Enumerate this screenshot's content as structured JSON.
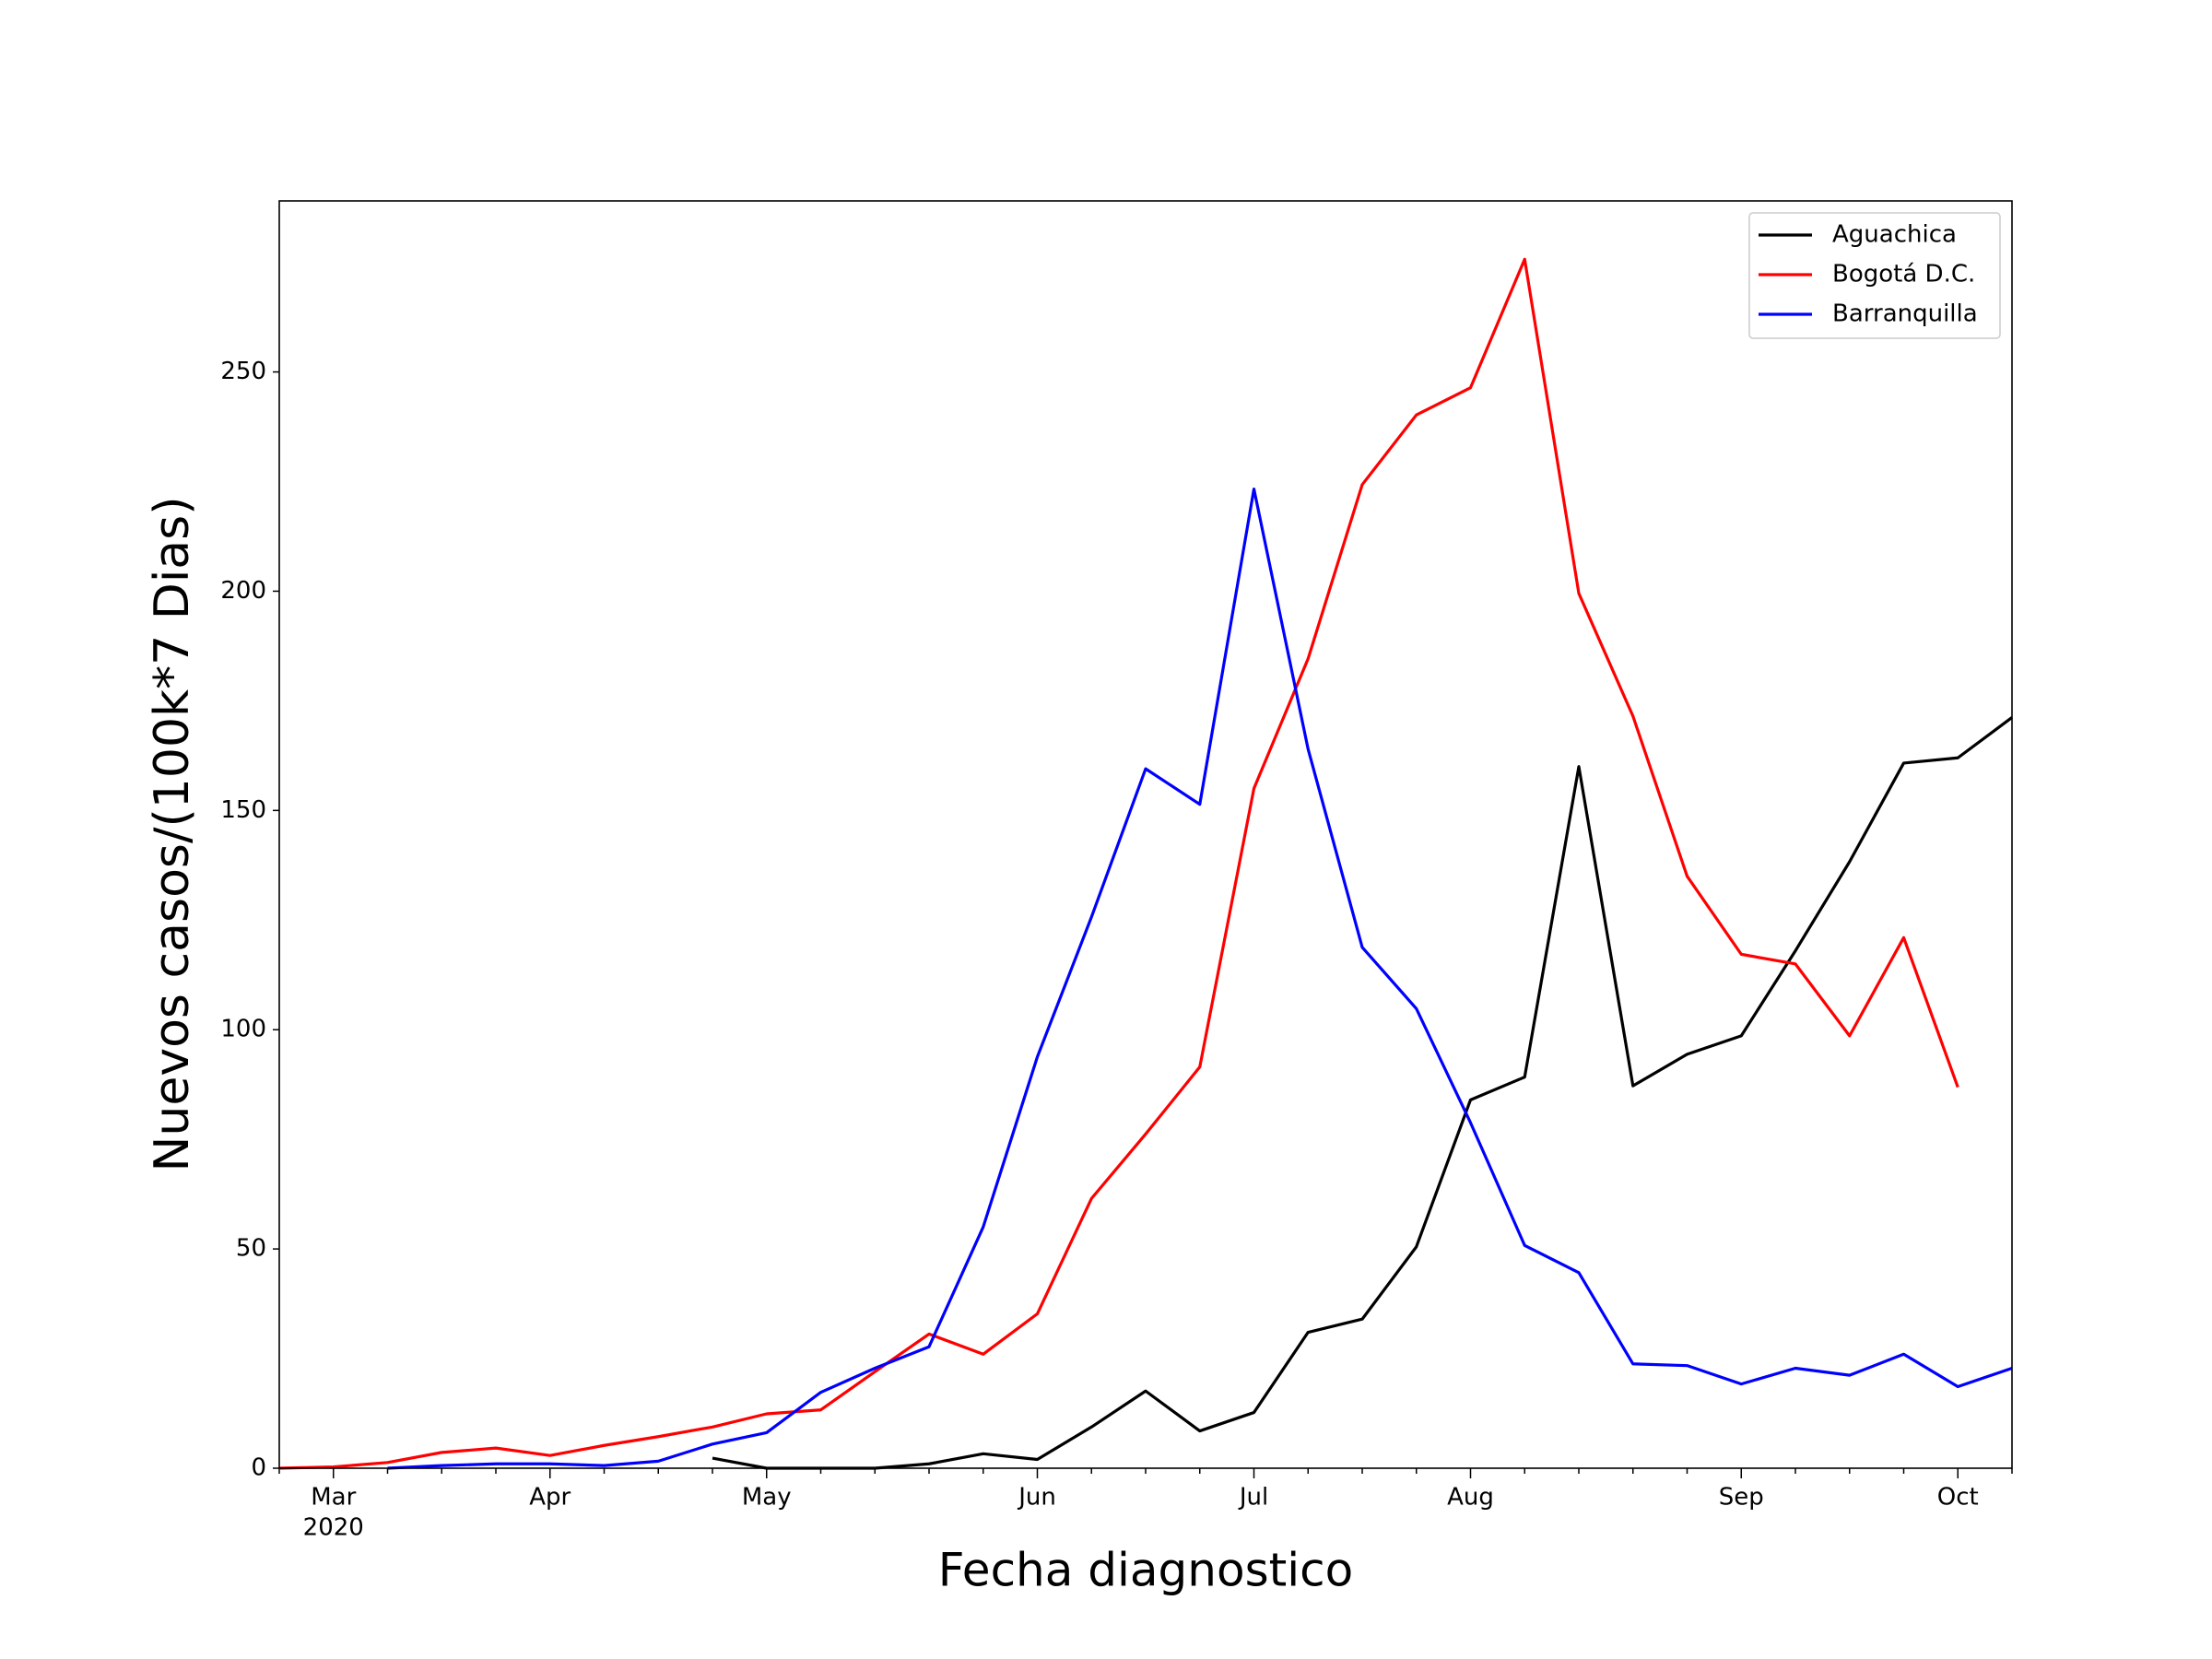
{
  "chart_data": {
    "type": "line",
    "xlabel": "Fecha diagnostico",
    "ylabel": "Nuevos casos/(100k*7 Dias)",
    "categories": [
      null,
      "Mar",
      null,
      null,
      null,
      "Apr",
      null,
      null,
      null,
      "May",
      null,
      null,
      null,
      null,
      "Jun",
      null,
      null,
      null,
      "Jul",
      null,
      null,
      null,
      "Aug",
      null,
      null,
      null,
      null,
      "Sep",
      null,
      null,
      null,
      "Oct",
      null
    ],
    "year_label": "2020",
    "ylim": [
      0,
      289
    ],
    "yticks": [
      0,
      50,
      100,
      150,
      200,
      250
    ],
    "legend": "upper right",
    "series": [
      {
        "name": "Aguachica",
        "color": "#000000",
        "values": [
          null,
          null,
          null,
          null,
          null,
          null,
          null,
          null,
          2.3,
          0,
          0,
          0,
          1,
          3.3,
          2,
          9.4,
          17.6,
          8.5,
          12.7,
          31,
          34,
          50.5,
          84,
          89.2,
          160,
          87.2,
          94.4,
          98.6,
          118,
          138.3,
          160.8,
          162,
          171.2
        ]
      },
      {
        "name": "Bogotá D.C.",
        "color": "#ff0000",
        "values": [
          0,
          0.3,
          1.3,
          3.6,
          4.6,
          2.9,
          5.2,
          7.2,
          9.4,
          12.4,
          13.3,
          22,
          30.6,
          26,
          35.2,
          61.5,
          76.2,
          91.5,
          155,
          184.6,
          224.3,
          240.2,
          246.4,
          275.7,
          199.5,
          171.5,
          135,
          117.2,
          115,
          98.6,
          121,
          86.9,
          null
        ]
      },
      {
        "name": "Barranquilla",
        "color": "#0000ff",
        "values": [
          null,
          null,
          0,
          0.6,
          1,
          1,
          0.6,
          1.6,
          5.5,
          8.1,
          17.3,
          22.8,
          27.7,
          55,
          93.8,
          125.7,
          159.5,
          151.4,
          223.3,
          164,
          118.8,
          104.8,
          78.8,
          50.8,
          44.6,
          23.8,
          23.4,
          19.2,
          22.8,
          21.2,
          26,
          18.6,
          22.8
        ]
      }
    ]
  }
}
